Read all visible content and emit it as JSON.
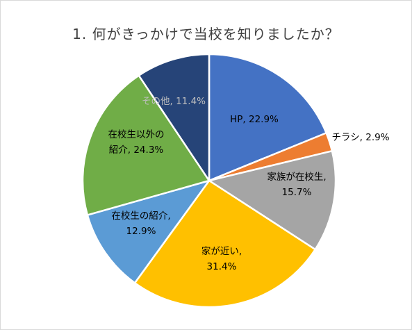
{
  "chart_data": {
    "type": "pie",
    "title": "1. 何がきっかけで当校を知りましたか？",
    "start_angle_deg": 0,
    "direction": "clockwise",
    "slices": [
      {
        "label": "HP",
        "value": 22.9,
        "value_label": "22.9%",
        "color": "#4472c4",
        "label_lines": [
          "HP, 22.9%"
        ],
        "text_color": "#000000",
        "placement": "inside"
      },
      {
        "label": "チラシ",
        "value": 2.9,
        "value_label": "2.9%",
        "color": "#ed7d31",
        "label_lines": [
          "チラシ, 2.9%"
        ],
        "text_color": "#000000",
        "placement": "outside"
      },
      {
        "label": "家族が在校生",
        "value": 15.7,
        "value_label": "15.7%",
        "color": "#a5a5a5",
        "label_lines": [
          "家族が在校生,",
          "15.7%"
        ],
        "text_color": "#000000",
        "placement": "inside"
      },
      {
        "label": "家が近い",
        "value": 31.4,
        "value_label": "31.4%",
        "color": "#ffc000",
        "label_lines": [
          "家が近い,",
          "31.4%"
        ],
        "text_color": "#000000",
        "placement": "inside"
      },
      {
        "label": "在校生の紹介",
        "value": 12.9,
        "value_label": "12.9%",
        "color": "#5b9bd5",
        "label_lines": [
          "在校生の紹介,",
          "12.9%"
        ],
        "text_color": "#000000",
        "placement": "inside"
      },
      {
        "label": "在校生以外の紹介",
        "value": 24.3,
        "value_label": "24.3%",
        "color": "#70ad47",
        "label_lines": [
          "在校生以外の",
          "紹介, 24.3%"
        ],
        "text_color": "#000000",
        "placement": "inside"
      },
      {
        "label": "その他",
        "value": 11.4,
        "value_label": "11.4%",
        "color": "#264478",
        "label_lines": [
          "その他, 11.4%"
        ],
        "text_color": "#bfbfbf",
        "placement": "inside"
      }
    ],
    "legend": "none"
  }
}
